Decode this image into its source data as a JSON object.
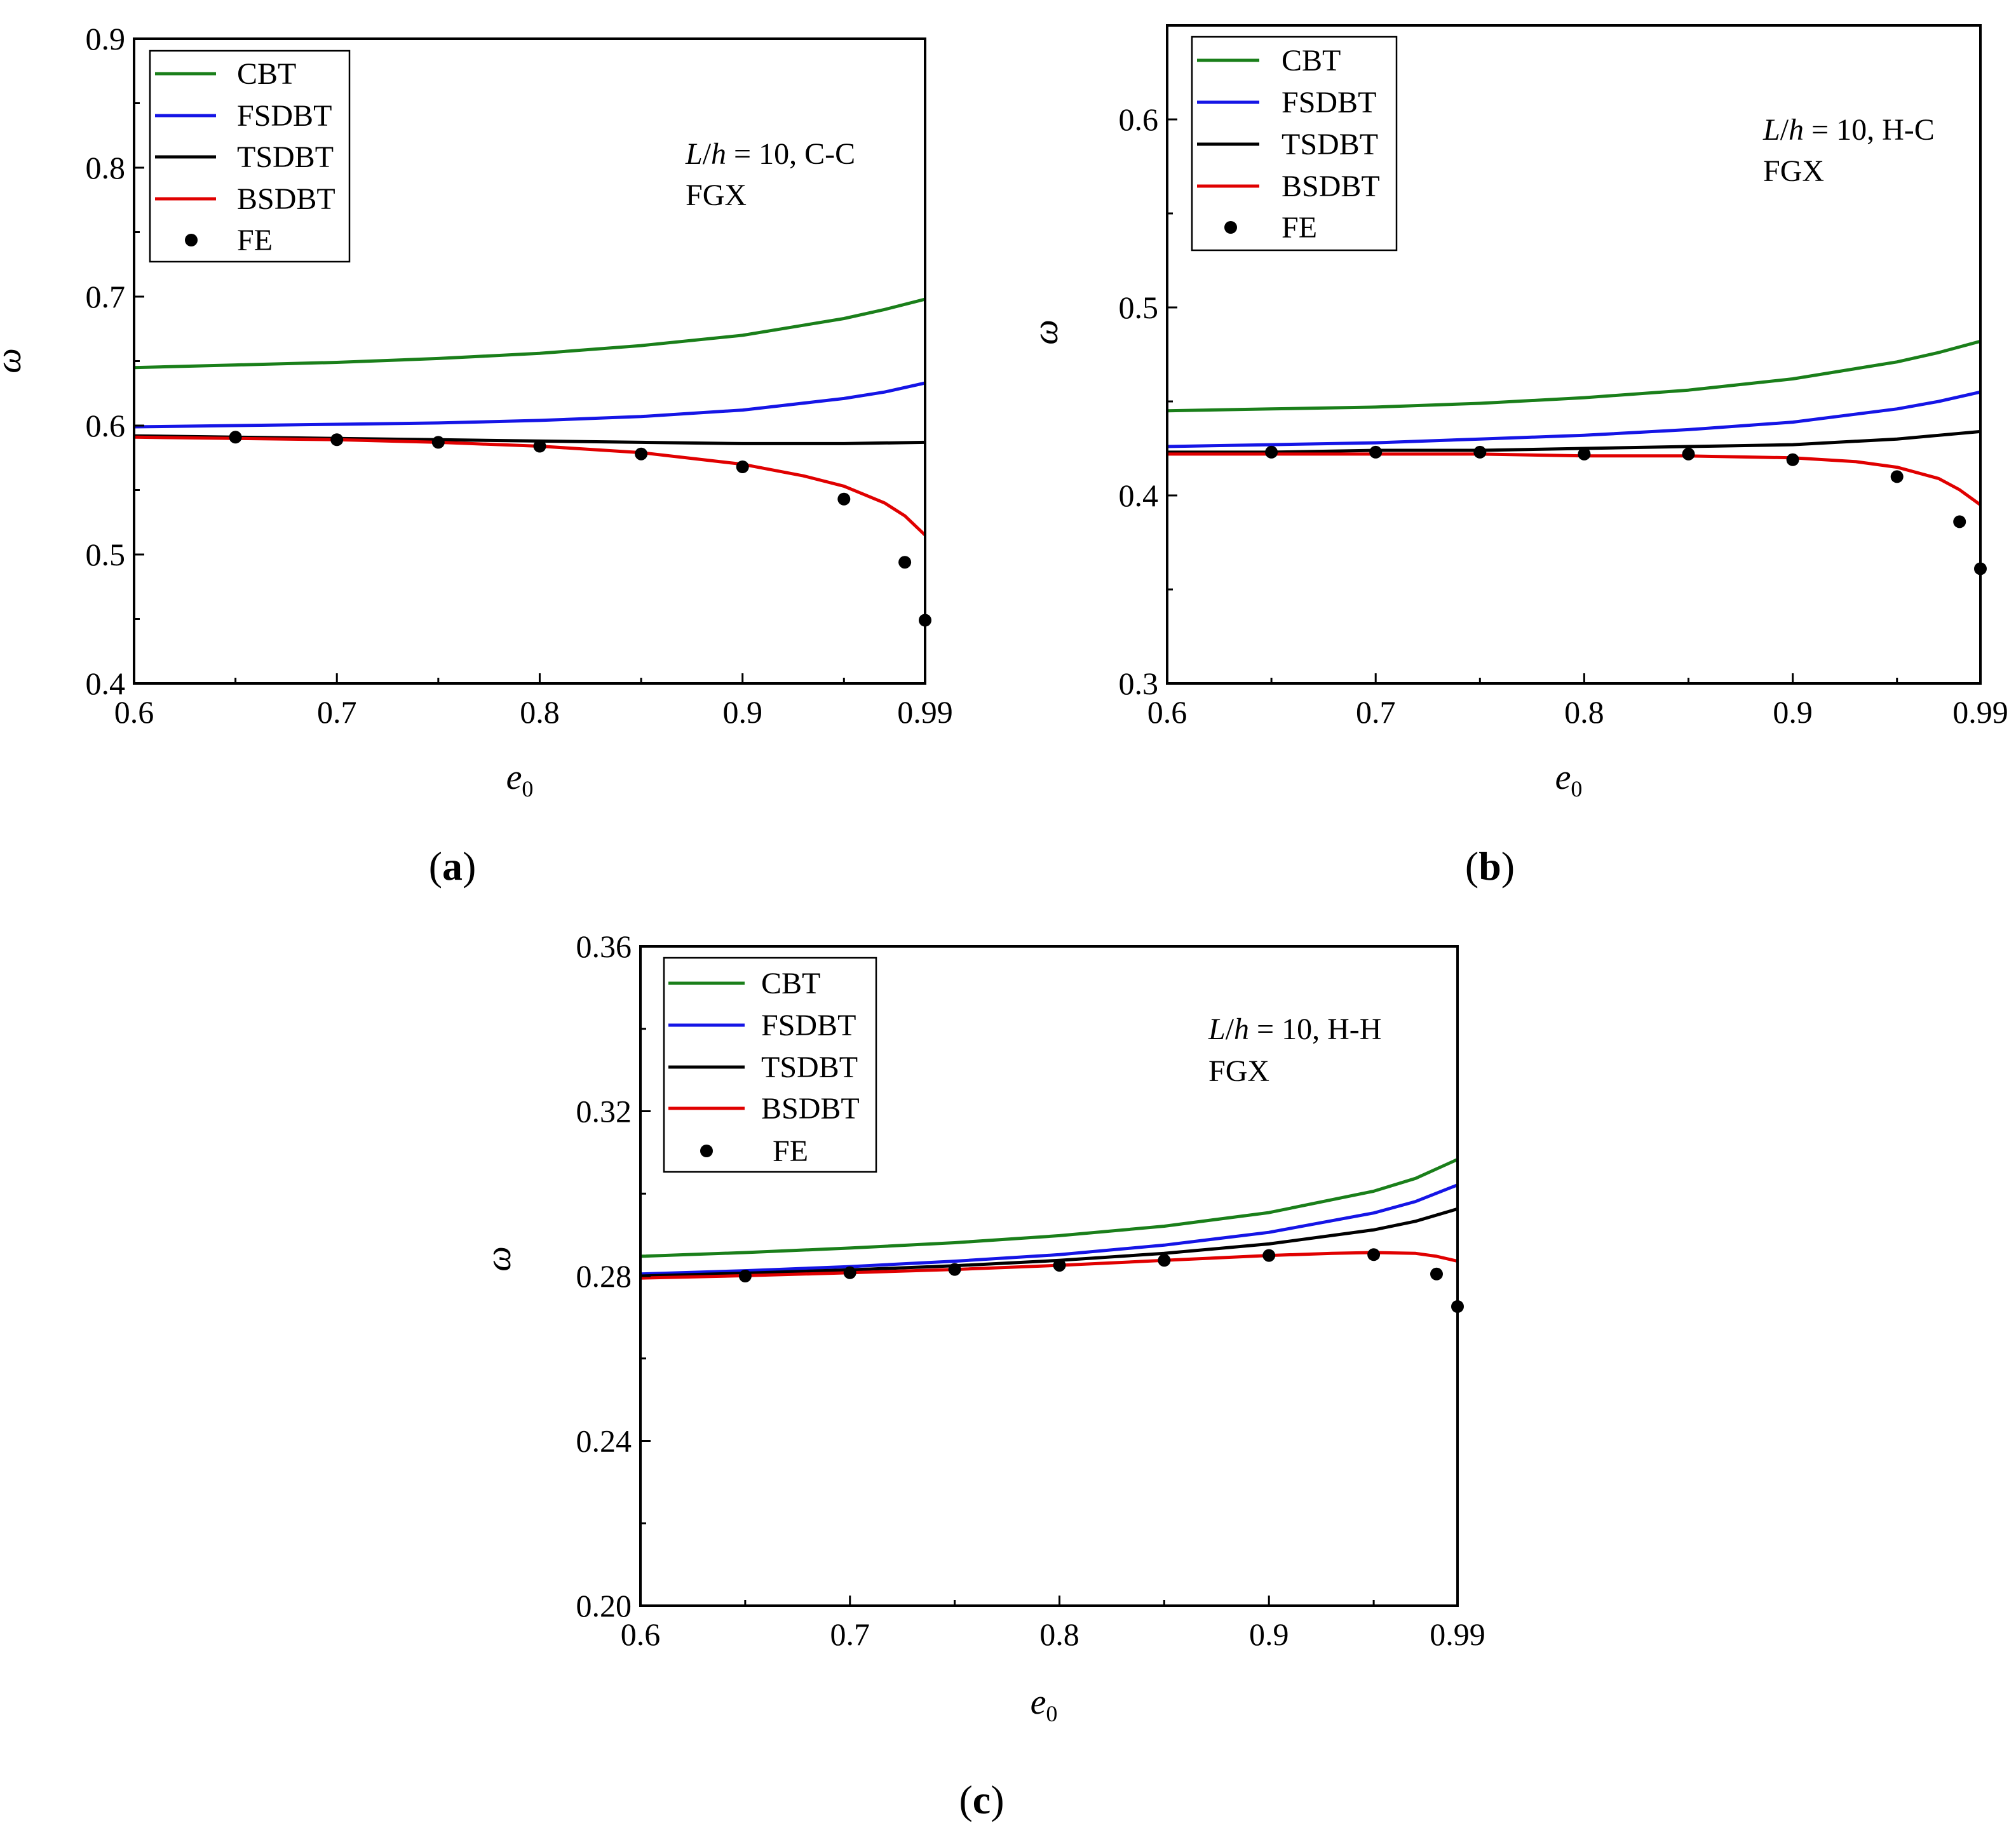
{
  "chart_data": [
    {
      "panel": "(a)",
      "panel_letter": "a",
      "type": "line",
      "xlabel": "e",
      "xlabel_sub": "0",
      "ylabel": "ω",
      "xlim": [
        0.6,
        0.99
      ],
      "ylim": [
        0.4,
        0.9
      ],
      "xticks": [
        0.6,
        0.7,
        0.8,
        0.9,
        0.99
      ],
      "xtick_labels": [
        "0.6",
        "0.7",
        "0.8",
        "0.9",
        "0.99"
      ],
      "yticks": [
        0.4,
        0.5,
        0.6,
        0.7,
        0.8,
        0.9
      ],
      "ytick_labels": [
        "0.4",
        "0.5",
        "0.6",
        "0.7",
        "0.8",
        "0.9"
      ],
      "annotation": {
        "line1_italic_L": "L",
        "line1_slash": "/",
        "line1_italic_h": "h",
        "line1_rest": " = 10, C-C",
        "line2": "FGX"
      },
      "legend_position": "top-left",
      "series": [
        {
          "name": "CBT",
          "color": "#1a7f1a",
          "kind": "line",
          "x": [
            0.6,
            0.65,
            0.7,
            0.75,
            0.8,
            0.85,
            0.9,
            0.95,
            0.97,
            0.99
          ],
          "y": [
            0.645,
            0.647,
            0.649,
            0.652,
            0.656,
            0.662,
            0.67,
            0.683,
            0.69,
            0.698
          ]
        },
        {
          "name": "FSDBT",
          "color": "#1515e6",
          "kind": "line",
          "x": [
            0.6,
            0.65,
            0.7,
            0.75,
            0.8,
            0.85,
            0.9,
            0.95,
            0.97,
            0.99
          ],
          "y": [
            0.599,
            0.6,
            0.601,
            0.602,
            0.604,
            0.607,
            0.612,
            0.621,
            0.626,
            0.633
          ]
        },
        {
          "name": "TSDBT",
          "color": "#000000",
          "kind": "line",
          "x": [
            0.6,
            0.65,
            0.7,
            0.75,
            0.8,
            0.85,
            0.9,
            0.95,
            0.99
          ],
          "y": [
            0.592,
            0.591,
            0.59,
            0.589,
            0.588,
            0.587,
            0.586,
            0.586,
            0.587
          ]
        },
        {
          "name": "BSDBT",
          "color": "#e00000",
          "kind": "line",
          "x": [
            0.6,
            0.65,
            0.7,
            0.75,
            0.8,
            0.85,
            0.9,
            0.93,
            0.95,
            0.97,
            0.98,
            0.99
          ],
          "y": [
            0.591,
            0.59,
            0.589,
            0.587,
            0.584,
            0.579,
            0.57,
            0.561,
            0.553,
            0.54,
            0.53,
            0.515
          ]
        },
        {
          "name": "FE",
          "color": "#000000",
          "kind": "points",
          "x": [
            0.65,
            0.7,
            0.75,
            0.8,
            0.85,
            0.9,
            0.95,
            0.98,
            0.99
          ],
          "y": [
            0.591,
            0.589,
            0.587,
            0.584,
            0.578,
            0.568,
            0.543,
            0.494,
            0.449
          ]
        }
      ]
    },
    {
      "panel": "(b)",
      "panel_letter": "b",
      "type": "line",
      "xlabel": "e",
      "xlabel_sub": "0",
      "ylabel": "ω",
      "xlim": [
        0.6,
        0.99
      ],
      "ylim": [
        0.3,
        0.65
      ],
      "xticks": [
        0.6,
        0.7,
        0.8,
        0.9,
        0.99
      ],
      "xtick_labels": [
        "0.6",
        "0.7",
        "0.8",
        "0.9",
        "0.99"
      ],
      "yticks": [
        0.3,
        0.4,
        0.5,
        0.6
      ],
      "ytick_labels": [
        "0.3",
        "0.4",
        "0.5",
        "0.6"
      ],
      "annotation": {
        "line1_italic_L": "L",
        "line1_slash": "/",
        "line1_italic_h": "h",
        "line1_rest": " = 10, H-C",
        "line2": "FGX"
      },
      "legend_position": "top-left",
      "series": [
        {
          "name": "CBT",
          "color": "#1a7f1a",
          "kind": "line",
          "x": [
            0.6,
            0.65,
            0.7,
            0.75,
            0.8,
            0.85,
            0.9,
            0.95,
            0.97,
            0.99
          ],
          "y": [
            0.445,
            0.446,
            0.447,
            0.449,
            0.452,
            0.456,
            0.462,
            0.471,
            0.476,
            0.482
          ]
        },
        {
          "name": "FSDBT",
          "color": "#1515e6",
          "kind": "line",
          "x": [
            0.6,
            0.65,
            0.7,
            0.75,
            0.8,
            0.85,
            0.9,
            0.95,
            0.97,
            0.99
          ],
          "y": [
            0.426,
            0.427,
            0.428,
            0.43,
            0.432,
            0.435,
            0.439,
            0.446,
            0.45,
            0.455
          ]
        },
        {
          "name": "TSDBT",
          "color": "#000000",
          "kind": "line",
          "x": [
            0.6,
            0.65,
            0.7,
            0.75,
            0.8,
            0.85,
            0.9,
            0.95,
            0.99
          ],
          "y": [
            0.423,
            0.423,
            0.424,
            0.424,
            0.425,
            0.426,
            0.427,
            0.43,
            0.434
          ]
        },
        {
          "name": "BSDBT",
          "color": "#e00000",
          "kind": "line",
          "x": [
            0.6,
            0.65,
            0.7,
            0.75,
            0.8,
            0.85,
            0.9,
            0.93,
            0.95,
            0.97,
            0.98,
            0.99
          ],
          "y": [
            0.422,
            0.422,
            0.422,
            0.422,
            0.421,
            0.421,
            0.42,
            0.418,
            0.415,
            0.409,
            0.403,
            0.395
          ]
        },
        {
          "name": "FE",
          "color": "#000000",
          "kind": "points",
          "x": [
            0.65,
            0.7,
            0.75,
            0.8,
            0.85,
            0.9,
            0.95,
            0.98,
            0.99
          ],
          "y": [
            0.423,
            0.423,
            0.423,
            0.422,
            0.422,
            0.419,
            0.41,
            0.386,
            0.361
          ]
        }
      ]
    },
    {
      "panel": "(c)",
      "panel_letter": "c",
      "type": "line",
      "xlabel": "e",
      "xlabel_sub": "0",
      "ylabel": "ω",
      "xlim": [
        0.6,
        0.99
      ],
      "ylim": [
        0.2,
        0.36
      ],
      "xticks": [
        0.6,
        0.7,
        0.8,
        0.9,
        0.99
      ],
      "xtick_labels": [
        "0.6",
        "0.7",
        "0.8",
        "0.9",
        "0.99"
      ],
      "yticks": [
        0.2,
        0.24,
        0.28,
        0.32,
        0.36
      ],
      "ytick_labels": [
        "0.20",
        "0.24",
        "0.28",
        "0.32",
        "0.36"
      ],
      "annotation": {
        "line1_italic_L": "L",
        "line1_slash": "/",
        "line1_italic_h": "h",
        "line1_rest": " = 10, H-H",
        "line2": "FGX"
      },
      "legend_position": "top-left",
      "series": [
        {
          "name": "CBT",
          "color": "#1a7f1a",
          "kind": "line",
          "x": [
            0.6,
            0.65,
            0.7,
            0.75,
            0.8,
            0.85,
            0.9,
            0.95,
            0.97,
            0.99
          ],
          "y": [
            0.2848,
            0.2857,
            0.2868,
            0.2881,
            0.2898,
            0.2921,
            0.2954,
            0.3006,
            0.3037,
            0.3083
          ]
        },
        {
          "name": "FSDBT",
          "color": "#1515e6",
          "kind": "line",
          "x": [
            0.6,
            0.65,
            0.7,
            0.75,
            0.8,
            0.85,
            0.9,
            0.95,
            0.97,
            0.99
          ],
          "y": [
            0.2805,
            0.2813,
            0.2823,
            0.2836,
            0.2852,
            0.2875,
            0.2906,
            0.2953,
            0.2981,
            0.3021
          ]
        },
        {
          "name": "TSDBT",
          "color": "#000000",
          "kind": "line",
          "x": [
            0.6,
            0.65,
            0.7,
            0.75,
            0.8,
            0.85,
            0.9,
            0.95,
            0.97,
            0.99
          ],
          "y": [
            0.28,
            0.2807,
            0.2815,
            0.2825,
            0.2838,
            0.2855,
            0.2878,
            0.2912,
            0.2933,
            0.2963
          ]
        },
        {
          "name": "BSDBT",
          "color": "#e00000",
          "kind": "line",
          "x": [
            0.6,
            0.65,
            0.7,
            0.75,
            0.8,
            0.85,
            0.9,
            0.93,
            0.95,
            0.97,
            0.98,
            0.99
          ],
          "y": [
            0.2795,
            0.2801,
            0.2808,
            0.2816,
            0.2826,
            0.2838,
            0.285,
            0.2855,
            0.2857,
            0.2855,
            0.2848,
            0.2836
          ]
        },
        {
          "name": "FE",
          "color": "#000000",
          "kind": "points",
          "x": [
            0.65,
            0.7,
            0.75,
            0.8,
            0.85,
            0.9,
            0.95,
            0.98,
            0.99
          ],
          "y": [
            0.28,
            0.2808,
            0.2816,
            0.2826,
            0.2838,
            0.285,
            0.2852,
            0.2805,
            0.2726
          ]
        }
      ]
    }
  ]
}
